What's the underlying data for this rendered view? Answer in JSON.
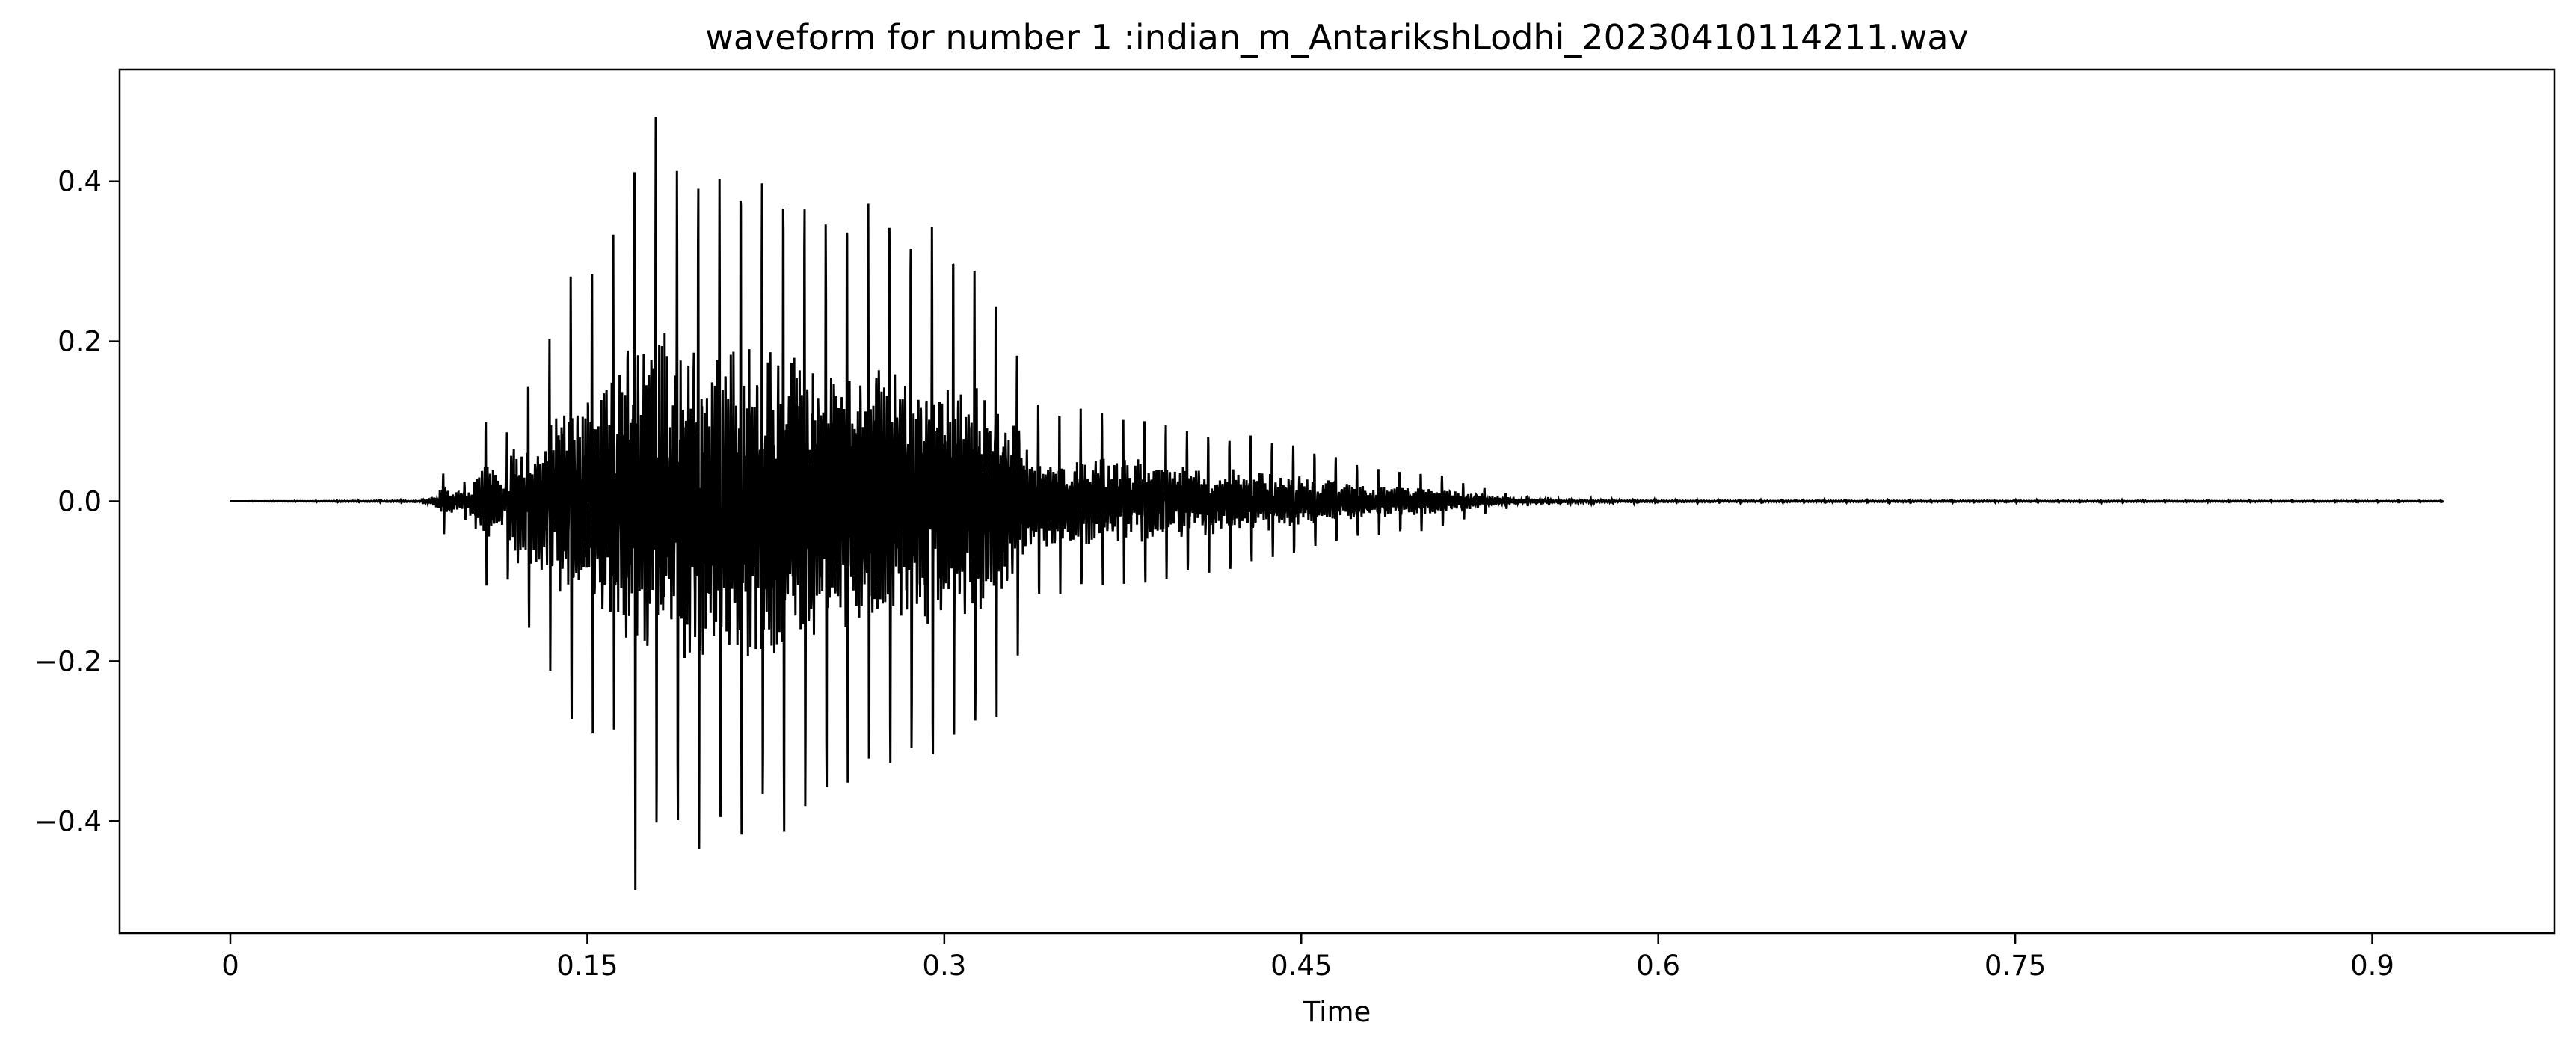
{
  "chart_data": {
    "type": "line",
    "title": "waveform for number 1 :indian_m_AntarikshLodhi_20230410114211.wav",
    "xlabel": "Time",
    "ylabel": "",
    "xlim": [
      -0.0465,
      0.9765
    ],
    "ylim": [
      -0.54,
      0.54
    ],
    "grid": false,
    "line_color": "#000000",
    "x_ticks": [
      {
        "value": 0,
        "label": "0"
      },
      {
        "value": 0.15,
        "label": "0.15"
      },
      {
        "value": 0.3,
        "label": "0.3"
      },
      {
        "value": 0.45,
        "label": "0.45"
      },
      {
        "value": 0.6,
        "label": "0.6"
      },
      {
        "value": 0.75,
        "label": "0.75"
      },
      {
        "value": 0.9,
        "label": "0.9"
      }
    ],
    "y_ticks": [
      {
        "value": -0.4,
        "label": "−0.4"
      },
      {
        "value": -0.2,
        "label": "−0.2"
      },
      {
        "value": 0.0,
        "label": "0.0"
      },
      {
        "value": 0.2,
        "label": "0.2"
      },
      {
        "value": 0.4,
        "label": "0.4"
      }
    ],
    "series": [
      {
        "duration": 0.93,
        "envelope": [
          [
            0.0,
            0.0
          ],
          [
            0.08,
            0.002
          ],
          [
            0.085,
            0.01
          ],
          [
            0.09,
            0.045
          ],
          [
            0.095,
            0.03
          ],
          [
            0.1,
            0.025
          ],
          [
            0.105,
            0.12
          ],
          [
            0.11,
            0.1
          ],
          [
            0.115,
            0.07
          ],
          [
            0.12,
            0.19
          ],
          [
            0.125,
            0.17
          ],
          [
            0.13,
            0.24
          ],
          [
            0.135,
            0.22
          ],
          [
            0.14,
            0.3
          ],
          [
            0.145,
            0.28
          ],
          [
            0.15,
            0.3
          ],
          [
            0.155,
            0.35
          ],
          [
            0.16,
            0.33
          ],
          [
            0.165,
            0.42
          ],
          [
            0.17,
            0.49
          ],
          [
            0.175,
            0.49
          ],
          [
            0.18,
            0.49
          ],
          [
            0.185,
            0.46
          ],
          [
            0.19,
            0.45
          ],
          [
            0.2,
            0.44
          ],
          [
            0.21,
            0.44
          ],
          [
            0.22,
            0.44
          ],
          [
            0.23,
            0.44
          ],
          [
            0.24,
            0.42
          ],
          [
            0.25,
            0.4
          ],
          [
            0.26,
            0.39
          ],
          [
            0.27,
            0.38
          ],
          [
            0.28,
            0.37
          ],
          [
            0.29,
            0.36
          ],
          [
            0.3,
            0.35
          ],
          [
            0.31,
            0.33
          ],
          [
            0.32,
            0.3
          ],
          [
            0.33,
            0.22
          ],
          [
            0.335,
            0.15
          ],
          [
            0.34,
            0.13
          ],
          [
            0.35,
            0.12
          ],
          [
            0.36,
            0.12
          ],
          [
            0.38,
            0.12
          ],
          [
            0.4,
            0.1
          ],
          [
            0.42,
            0.09
          ],
          [
            0.44,
            0.08
          ],
          [
            0.46,
            0.06
          ],
          [
            0.48,
            0.045
          ],
          [
            0.5,
            0.04
          ],
          [
            0.52,
            0.025
          ],
          [
            0.53,
            0.015
          ],
          [
            0.54,
            0.008
          ],
          [
            0.56,
            0.004
          ],
          [
            0.6,
            0.002
          ],
          [
            0.93,
            0.001
          ]
        ]
      }
    ]
  }
}
